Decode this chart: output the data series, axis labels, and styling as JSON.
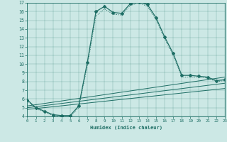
{
  "xlabel": "Humidex (Indice chaleur)",
  "xlim": [
    0,
    23
  ],
  "ylim": [
    4,
    17
  ],
  "xticks": [
    0,
    1,
    2,
    3,
    4,
    5,
    6,
    7,
    8,
    9,
    10,
    11,
    12,
    13,
    14,
    15,
    16,
    17,
    18,
    19,
    20,
    21,
    22,
    23
  ],
  "yticks": [
    4,
    5,
    6,
    7,
    8,
    9,
    10,
    11,
    12,
    13,
    14,
    15,
    16,
    17
  ],
  "background_color": "#cce8e5",
  "line_color": "#1e6e65",
  "curve_main_x": [
    0,
    1,
    2,
    3,
    4,
    5,
    6,
    7,
    8,
    9,
    10,
    11,
    12,
    13,
    14,
    15,
    16,
    17,
    18,
    19,
    20,
    21,
    22,
    23
  ],
  "curve_main_y": [
    5.9,
    5.0,
    4.6,
    4.2,
    4.1,
    4.1,
    5.2,
    10.2,
    16.0,
    16.6,
    15.9,
    15.8,
    16.9,
    17.1,
    16.8,
    15.3,
    13.1,
    11.2,
    8.7,
    8.7,
    8.6,
    8.5,
    8.1,
    8.2
  ],
  "curve_dot_x": [
    0,
    1,
    2,
    3,
    4,
    5,
    6,
    7,
    8,
    9,
    10,
    11,
    12,
    13,
    14,
    15,
    16,
    17,
    18,
    19,
    20,
    21,
    22,
    23
  ],
  "curve_dot_y": [
    5.8,
    4.9,
    4.5,
    4.1,
    4.0,
    4.0,
    5.0,
    9.8,
    15.5,
    16.3,
    15.7,
    15.6,
    16.7,
    17.0,
    16.6,
    15.1,
    12.9,
    11.0,
    8.5,
    8.5,
    8.5,
    8.4,
    8.0,
    8.1
  ],
  "line1_x": [
    0,
    23
  ],
  "line1_y": [
    5.2,
    8.5
  ],
  "line2_x": [
    0,
    23
  ],
  "line2_y": [
    5.0,
    7.8
  ],
  "line3_x": [
    0,
    23
  ],
  "line3_y": [
    4.8,
    7.2
  ]
}
